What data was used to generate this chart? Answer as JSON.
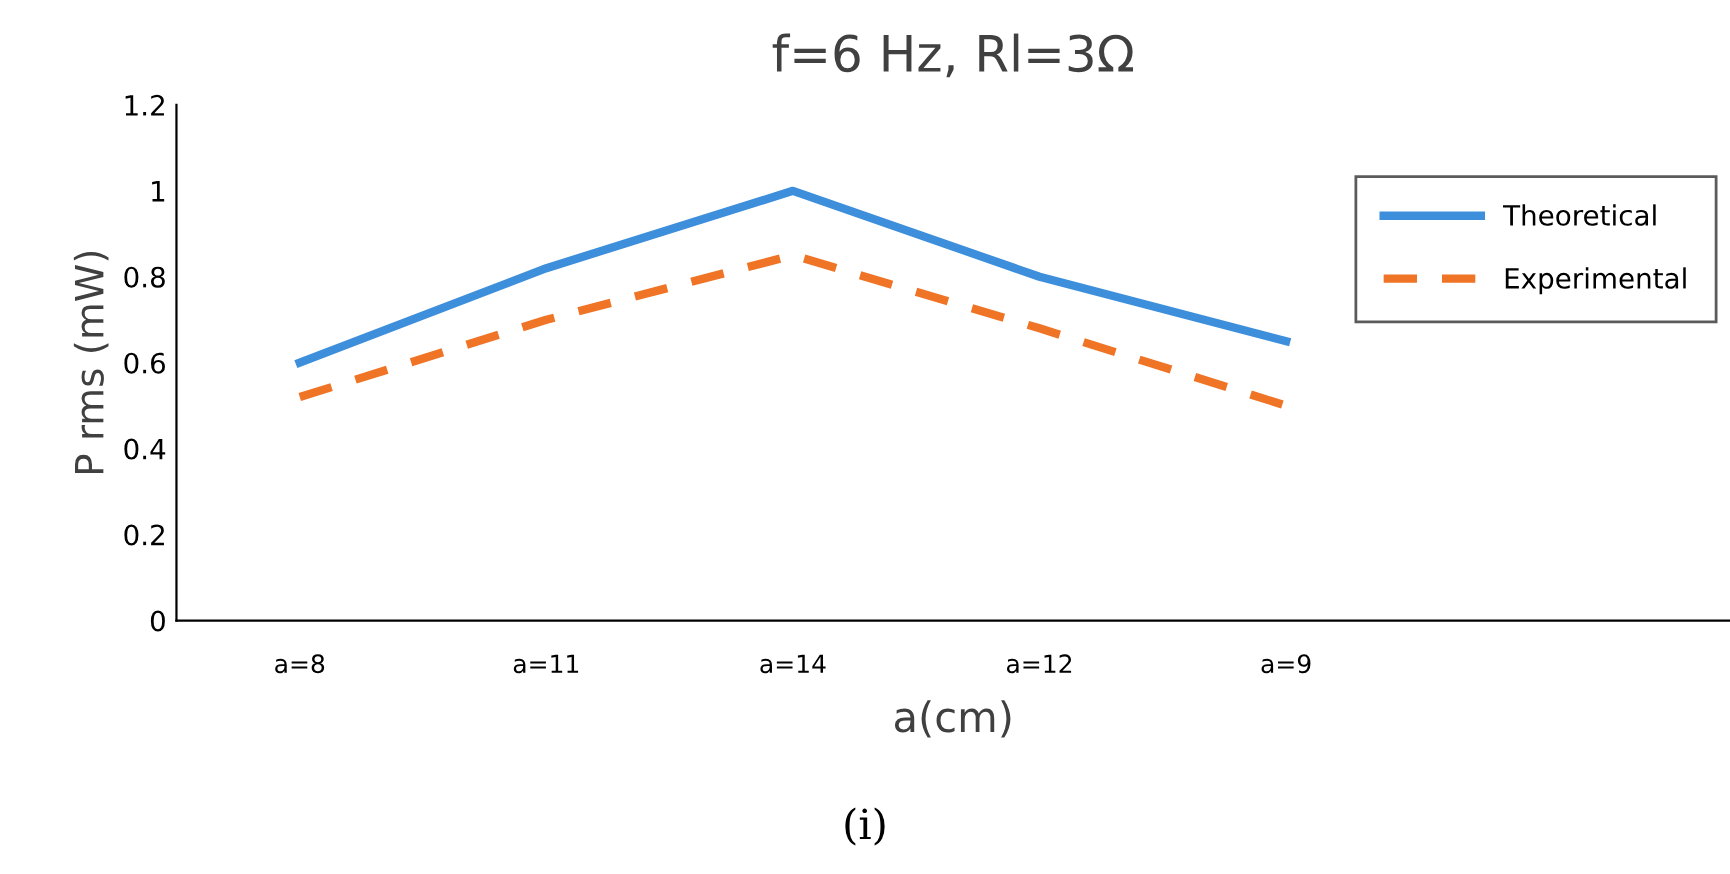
{
  "chart_data": {
    "type": "line",
    "title": "f=6 Hz, Rl=3Ω",
    "xlabel": "a(cm)",
    "ylabel": "P rms (mW)",
    "categories": [
      "a=8",
      "a=11",
      "a=14",
      "a=12",
      "a=9"
    ],
    "series": [
      {
        "name": "Theoretical",
        "color": "#3d8fdc",
        "values": [
          0.6,
          0.82,
          1.0,
          0.8,
          0.65
        ],
        "line_style": "solid"
      },
      {
        "name": "Experimental",
        "color": "#ef7426",
        "values": [
          0.52,
          0.7,
          0.85,
          0.68,
          0.5
        ],
        "line_style": "dashed"
      }
    ],
    "ylim": [
      0,
      1.2
    ],
    "yticks": [
      0,
      0.2,
      0.4,
      0.6,
      0.8,
      1,
      1.2
    ],
    "grid": false,
    "legend": "right",
    "marker": "none",
    "annotations": [
      "(i)"
    ]
  }
}
